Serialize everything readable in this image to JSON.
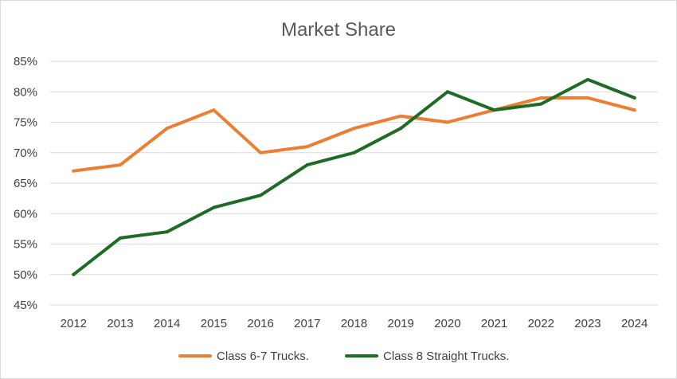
{
  "chart_data": {
    "type": "line",
    "title": "Market Share",
    "categories": [
      "2012",
      "2013",
      "2014",
      "2015",
      "2016",
      "2017",
      "2018",
      "2019",
      "2020",
      "2021",
      "2022",
      "2023",
      "2024"
    ],
    "yticks": [
      "45%",
      "50%",
      "55%",
      "60%",
      "65%",
      "70%",
      "75%",
      "80%",
      "85%"
    ],
    "ylim": [
      45,
      85
    ],
    "grid": true,
    "legend_position": "bottom",
    "series": [
      {
        "name": "Class 6-7 Trucks.",
        "color": "#ed7d31",
        "values": [
          67,
          68,
          74,
          77,
          70,
          71,
          74,
          76,
          75,
          77,
          79,
          79,
          77
        ]
      },
      {
        "name": "Class 8 Straight Trucks.",
        "color": "#1e6b24",
        "values": [
          50,
          56,
          57,
          61,
          63,
          68,
          70,
          74,
          80,
          77,
          78,
          82,
          79
        ]
      }
    ]
  }
}
